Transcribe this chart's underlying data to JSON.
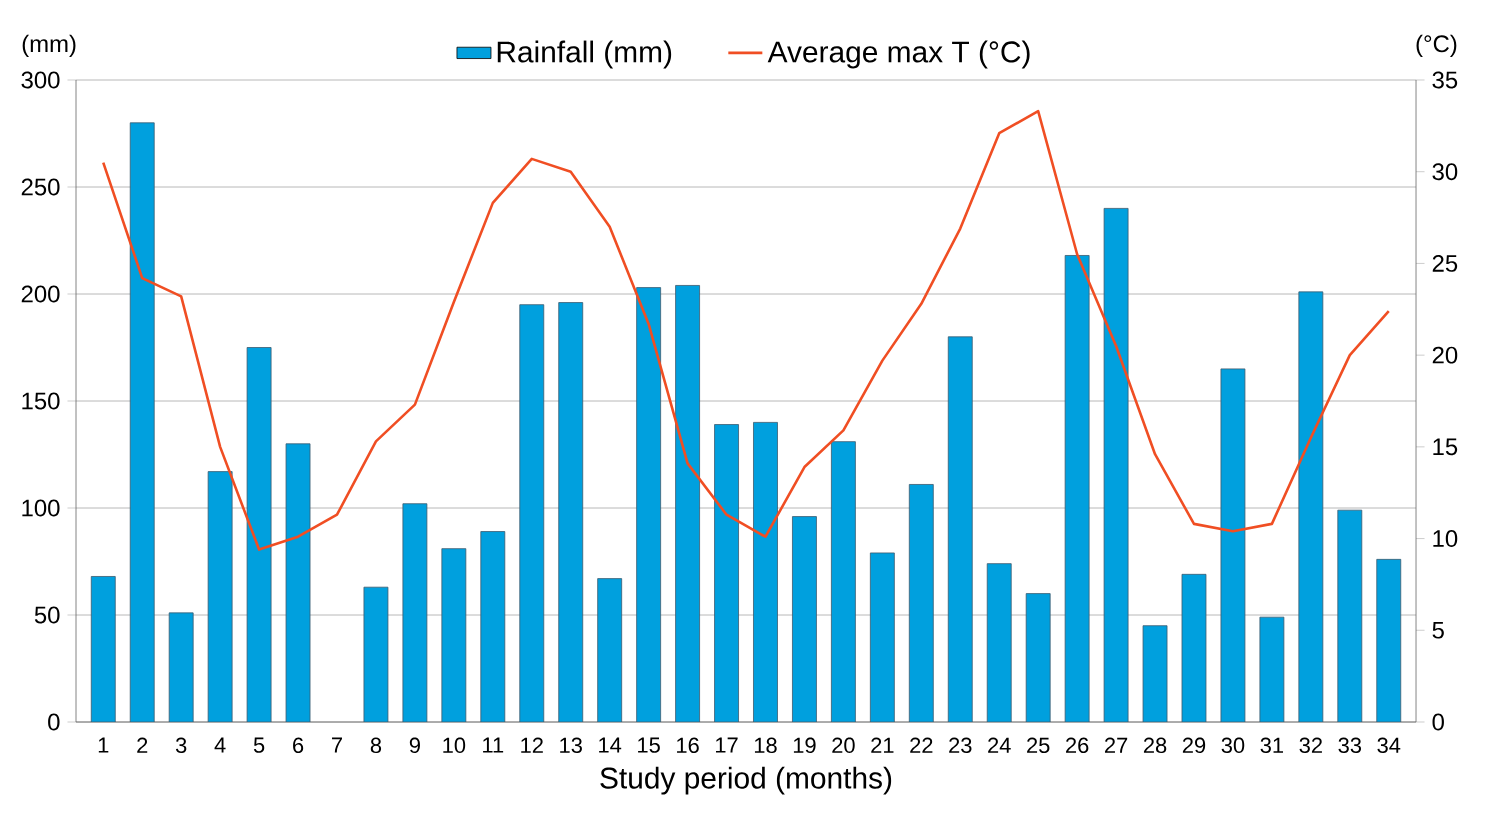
{
  "chart_data": {
    "type": "bar",
    "xlabel": "Study period (months)",
    "ylabel": "(mm)",
    "y2label": "(°C)",
    "categories": [
      "1",
      "2",
      "3",
      "4",
      "5",
      "6",
      "7",
      "8",
      "9",
      "10",
      "11",
      "12",
      "13",
      "14",
      "15",
      "16",
      "17",
      "18",
      "19",
      "20",
      "21",
      "22",
      "23",
      "24",
      "25",
      "26",
      "27",
      "28",
      "29",
      "30",
      "31",
      "32",
      "33",
      "34"
    ],
    "series": [
      {
        "name": "Rainfall (mm)",
        "color": "#00a0de",
        "values": [
          68,
          280,
          51,
          117,
          175,
          130,
          null,
          63,
          102,
          81,
          89,
          195,
          196,
          67,
          203,
          204,
          139,
          140,
          96,
          131,
          79,
          111,
          180,
          74,
          60,
          218,
          240,
          45,
          69,
          165,
          49,
          201,
          99,
          76
        ]
      },
      {
        "name": "Average max T (°C)",
        "type": "line",
        "axis": "y2",
        "color": "#f04e23",
        "values": [
          30.5,
          24.2,
          23.2,
          15,
          9.4,
          10.1,
          11.3,
          15.3,
          17.3,
          22.9,
          28.3,
          30.7,
          30,
          27,
          21.7,
          14.1,
          11.3,
          10.1,
          13.9,
          15.9,
          19.7,
          22.8,
          26.9,
          32.1,
          33.3,
          25.5,
          20.5,
          14.6,
          10.8,
          10.4,
          10.8,
          15.5,
          20,
          22.4
        ]
      }
    ],
    "ylim": [
      0,
      300
    ],
    "yticks": [
      0,
      50,
      100,
      150,
      200,
      250,
      300
    ],
    "y2lim": [
      0,
      35
    ],
    "y2ticks": [
      0,
      5,
      10,
      15,
      20,
      25,
      30,
      35
    ],
    "grid": "y",
    "legend": "top",
    "marker": "none",
    "line_style": "solid"
  }
}
